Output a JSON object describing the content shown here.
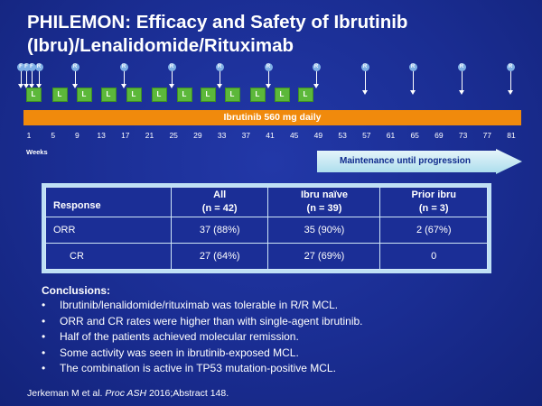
{
  "title": "PHILEMON: Efficacy and Safety of Ibrutinib (Ibru)/Lenalidomide/Rituximab",
  "schema": {
    "markers": [
      "F",
      "F",
      "F",
      "R",
      "R",
      "R",
      "R",
      "R",
      "R",
      "R",
      "R",
      "R",
      "R",
      "R"
    ],
    "lenalidomide_label": "L",
    "ibrutinib_bar": "Ibrutinib 560 mg daily",
    "weeks": [
      "1",
      "5",
      "9",
      "13",
      "17",
      "21",
      "25",
      "29",
      "33",
      "37",
      "41",
      "45",
      "49",
      "53",
      "57",
      "61",
      "65",
      "69",
      "73",
      "77",
      "81"
    ],
    "weeks_label": "Weeks",
    "maintenance": "Maintenance until progression"
  },
  "table": {
    "headers": [
      {
        "line1": "Response",
        "line2": ""
      },
      {
        "line1": "All",
        "line2": "(n = 42)"
      },
      {
        "line1": "Ibru naïve",
        "line2": "(n = 39)"
      },
      {
        "line1": "Prior ibru",
        "line2": "(n = 3)"
      }
    ],
    "rows": [
      {
        "label": "ORR",
        "all": "37 (88%)",
        "naive": "35 (90%)",
        "prior": "2 (67%)"
      },
      {
        "label": "CR",
        "all": "27 (64%)",
        "naive": "27 (69%)",
        "prior": "0"
      }
    ]
  },
  "conclusions": {
    "heading": "Conclusions:",
    "items": [
      "Ibrutinib/lenalidomide/rituximab was tolerable in R/R MCL.",
      "ORR and CR rates were higher than with single-agent ibrutinib.",
      "Half of the patients achieved molecular remission.",
      "Some activity was seen in ibrutinib-exposed MCL.",
      "The combination is active in TP53 mutation-positive MCL."
    ]
  },
  "reference": {
    "authors": "Jerkeman M et al.",
    "journal": "Proc ASH",
    "rest": "2016;Abstract 148."
  }
}
